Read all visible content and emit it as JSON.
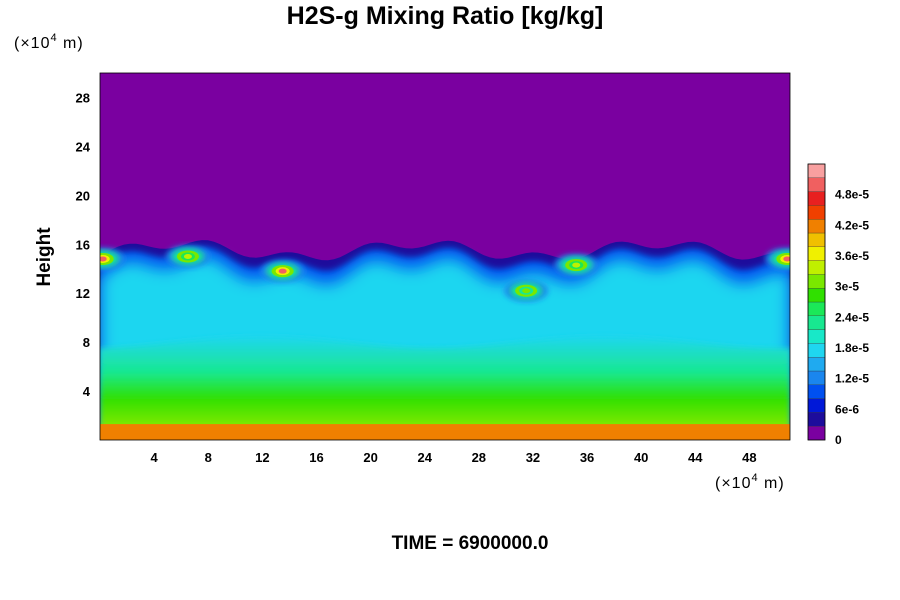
{
  "chart_data": {
    "type": "heatmap",
    "title": "H2S-g Mixing Ratio [kg/kg]",
    "ylabel": "Height",
    "x_unit_prefix": "(×10",
    "x_unit_exp": "4",
    "x_unit_suffix": " m)",
    "y_unit_prefix": "(×10",
    "y_unit_exp": "4",
    "y_unit_suffix": " m)",
    "xlim": [
      0,
      51
    ],
    "ylim": [
      0,
      30
    ],
    "x_ticks": [
      "4",
      "8",
      "12",
      "16",
      "20",
      "24",
      "28",
      "32",
      "36",
      "40",
      "44",
      "48"
    ],
    "x_tick_values": [
      4,
      8,
      12,
      16,
      20,
      24,
      28,
      32,
      36,
      40,
      44,
      48
    ],
    "y_ticks": [
      "4",
      "8",
      "12",
      "16",
      "20",
      "24",
      "28"
    ],
    "y_tick_values": [
      4,
      8,
      12,
      16,
      20,
      24,
      28
    ],
    "colorbar": {
      "range": [
        0,
        5.4e-05
      ],
      "tick_labels": [
        "0",
        "6e-6",
        "1.2e-5",
        "1.8e-5",
        "2.4e-5",
        "3e-5",
        "3.6e-5",
        "4.2e-5",
        "4.8e-5"
      ],
      "tick_values": [
        0,
        6e-06,
        1.2e-05,
        1.8e-05,
        2.4e-05,
        3e-05,
        3.6e-05,
        4.2e-05,
        4.8e-05
      ],
      "colors": [
        "#7a00a0",
        "#1d0c9c",
        "#0018d8",
        "#0050f0",
        "#1a86ee",
        "#1faaf0",
        "#1fd6f0",
        "#18e8c8",
        "#18e890",
        "#1be858",
        "#30e000",
        "#7ae800",
        "#c0f000",
        "#f0f000",
        "#f0c000",
        "#f08000",
        "#f04000",
        "#e82020",
        "#f06060",
        "#f8a0a0"
      ]
    },
    "fields": {
      "top_layer_value": 0,
      "interface_height_mean": 15.5,
      "bottom_value": 3.3e-05,
      "interior_value": 1.8e-05,
      "blobs": [
        {
          "x": 0.2,
          "y": 14.8,
          "value": 5e-05
        },
        {
          "x": 50.8,
          "y": 14.8,
          "value": 5e-05
        },
        {
          "x": 13.5,
          "y": 13.8,
          "value": 5e-05
        },
        {
          "x": 6.5,
          "y": 15.0,
          "value": 3.5e-05
        },
        {
          "x": 31.5,
          "y": 12.2,
          "value": 3.2e-05
        },
        {
          "x": 35.2,
          "y": 14.3,
          "value": 3.4e-05
        }
      ]
    }
  },
  "footer": {
    "time_label": "TIME = 6900000.0"
  }
}
